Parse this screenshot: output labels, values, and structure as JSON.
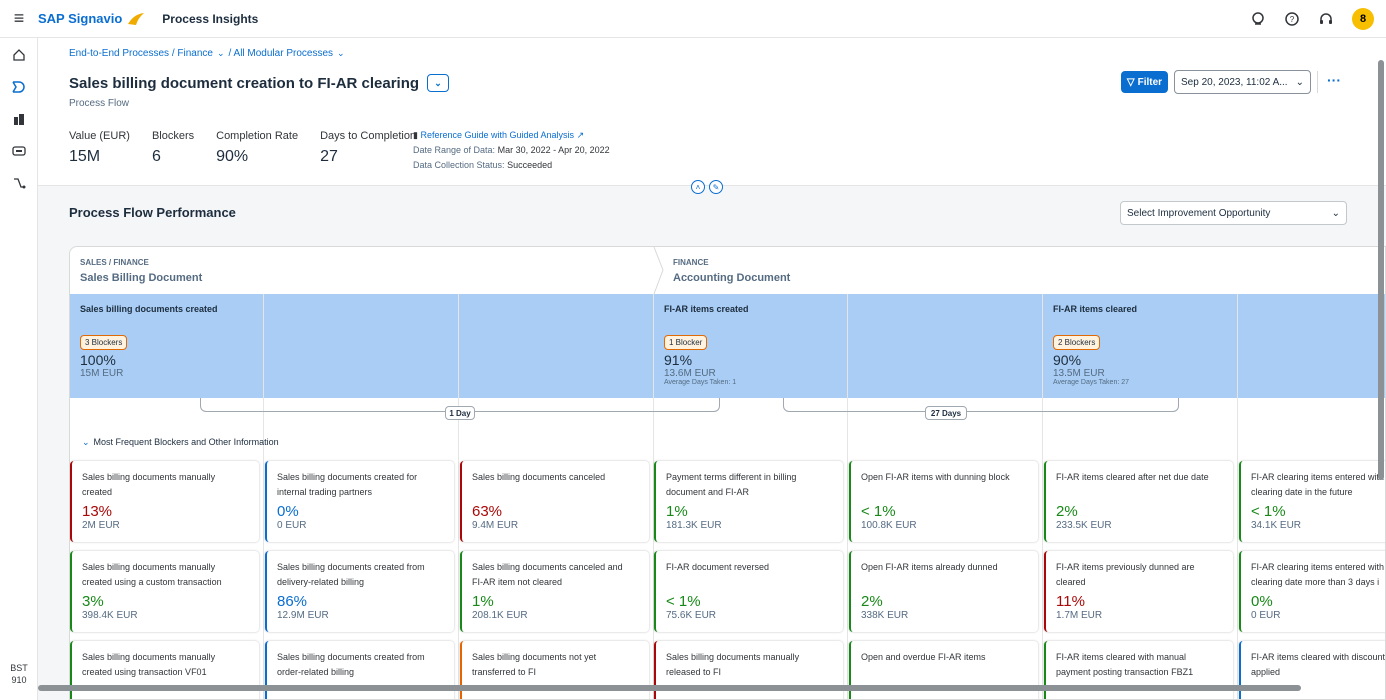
{
  "shell": {
    "brand": "SAP Signavio",
    "product": "Process Insights",
    "avatar": "8"
  },
  "leftnav": {
    "footer_line1": "BST",
    "footer_line2": "910"
  },
  "breadcrumb": {
    "path": "End-to-End Processes / Finance",
    "current": "/ All Modular Processes"
  },
  "page": {
    "title": "Sales billing document creation to FI-AR clearing",
    "subtitle": "Process Flow"
  },
  "kpis": [
    {
      "label": "Value (EUR)",
      "value": "15M"
    },
    {
      "label": "Blockers",
      "value": "6"
    },
    {
      "label": "Completion Rate",
      "value": "90%"
    },
    {
      "label": "Days to Completion",
      "value": "27"
    }
  ],
  "info": {
    "link": "Reference Guide with Guided Analysis",
    "date_label": "Date Range of Data:",
    "date_value": "Mar 30, 2022 - Apr 20, 2022",
    "status_label": "Data Collection Status:",
    "status_value": "Succeeded"
  },
  "toolbar": {
    "filter_label": "Filter",
    "date_select": "Sep 20, 2023, 11:02 A..."
  },
  "section": {
    "title": "Process Flow Performance",
    "opportunity_placeholder": "Select Improvement Opportunity"
  },
  "stages": [
    {
      "area": "SALES / FINANCE",
      "name": "Sales Billing Document"
    },
    {
      "area": "FINANCE",
      "name": "Accounting Document"
    }
  ],
  "steps": [
    {
      "name": "Sales billing documents created",
      "badge": "3 Blockers",
      "percent": "100%",
      "amount": "15M EUR",
      "avg": ""
    },
    {
      "name": "FI-AR items created",
      "badge": "1 Blocker",
      "percent": "91%",
      "amount": "13.6M EUR",
      "avg": "Average Days Taken: 1"
    },
    {
      "name": "FI-AR items cleared",
      "badge": "2 Blockers",
      "percent": "90%",
      "amount": "13.5M EUR",
      "avg": "Average Days Taken: 27"
    }
  ],
  "durations": [
    "1 Day",
    "27 Days"
  ],
  "blockers_header": "Most Frequent Blockers and Other Information",
  "cards": [
    [
      {
        "title": "Sales billing documents manually\ncreated",
        "percent": "13%",
        "amount": "2M EUR",
        "accent": "red"
      },
      {
        "title": "Sales billing documents manually\ncreated using a custom transaction",
        "percent": "3%",
        "amount": "398.4K EUR",
        "accent": "green"
      },
      {
        "title": "Sales billing documents manually\ncreated using transaction VF01",
        "percent": "",
        "amount": "",
        "accent": "green"
      }
    ],
    [
      {
        "title": "Sales billing documents created for\ninternal trading partners",
        "percent": "0%",
        "amount": "0 EUR",
        "accent": "blue"
      },
      {
        "title": "Sales billing documents created from\ndelivery-related billing",
        "percent": "86%",
        "amount": "12.9M EUR",
        "accent": "blue"
      },
      {
        "title": "Sales billing documents created from\norder-related billing",
        "percent": "",
        "amount": "",
        "accent": "blue"
      }
    ],
    [
      {
        "title": "Sales billing documents canceled",
        "percent": "63%",
        "amount": "9.4M EUR",
        "accent": "red"
      },
      {
        "title": "Sales billing documents canceled and\nFI-AR item not cleared",
        "percent": "1%",
        "amount": "208.1K EUR",
        "accent": "green"
      },
      {
        "title": "Sales billing documents not yet\ntransferred to FI",
        "percent": "",
        "amount": "",
        "accent": "orange"
      }
    ],
    [
      {
        "title": "Payment terms different in billing\ndocument and FI-AR",
        "percent": "1%",
        "amount": "181.3K EUR",
        "accent": "green"
      },
      {
        "title": "FI-AR document reversed",
        "percent": "< 1%",
        "amount": "75.6K EUR",
        "accent": "green"
      },
      {
        "title": "Sales billing documents manually\nreleased to FI",
        "percent": "",
        "amount": "",
        "accent": "red"
      }
    ],
    [
      {
        "title": "Open FI-AR items with dunning block",
        "percent": "< 1%",
        "amount": "100.8K EUR",
        "accent": "green"
      },
      {
        "title": "Open FI-AR items already dunned",
        "percent": "2%",
        "amount": "338K EUR",
        "accent": "green"
      },
      {
        "title": "Open and overdue FI-AR items",
        "percent": "",
        "amount": "",
        "accent": "green"
      }
    ],
    [
      {
        "title": "FI-AR items cleared after net due date",
        "percent": "2%",
        "amount": "233.5K EUR",
        "accent": "green"
      },
      {
        "title": "FI-AR items previously dunned are\ncleared",
        "percent": "11%",
        "amount": "1.7M EUR",
        "accent": "red"
      },
      {
        "title": "FI-AR items cleared with manual\npayment posting transaction FBZ1",
        "percent": "",
        "amount": "",
        "accent": "green"
      }
    ],
    [
      {
        "title": "FI-AR clearing items entered with\nclearing date in the future",
        "percent": "< 1%",
        "amount": "34.1K EUR",
        "accent": "green"
      },
      {
        "title": "FI-AR clearing items entered with\nclearing date more than 3 days i",
        "percent": "0%",
        "amount": "0 EUR",
        "accent": "green"
      },
      {
        "title": "FI-AR items cleared with discount\napplied",
        "percent": "",
        "amount": "",
        "accent": "blue"
      }
    ]
  ],
  "colors": {
    "accent": "#0a6ed1",
    "band": "#a9cdf4",
    "red": "#aa0808",
    "green": "#188918",
    "orange": "#e76500"
  }
}
